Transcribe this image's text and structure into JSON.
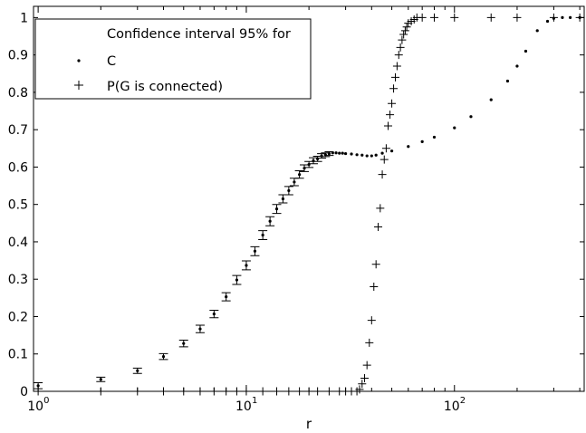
{
  "chart_data": {
    "type": "scatter",
    "title": "",
    "xlabel": "r",
    "ylabel": "",
    "xscale": "log",
    "xlim": [
      0.95,
      420
    ],
    "ylim": [
      0,
      1.03
    ],
    "grid": false,
    "legend": {
      "placement": "top-left",
      "title": "Confidence interval 95% for",
      "entries": [
        "C",
        "P(G is connected)"
      ]
    },
    "x_ticks": [
      {
        "base": "10",
        "exp": "0",
        "value": 1
      },
      {
        "base": "10",
        "exp": "1",
        "value": 10
      },
      {
        "base": "10",
        "exp": "2",
        "value": 100
      }
    ],
    "y_ticks": [
      "0",
      "0.1",
      "0.2",
      "0.3",
      "0.4",
      "0.5",
      "0.6",
      "0.7",
      "0.8",
      "0.9",
      "1"
    ],
    "series": [
      {
        "name": "C",
        "marker": "dot",
        "error_bars": true,
        "x": [
          1,
          2,
          3,
          4,
          5,
          6,
          7,
          8,
          9,
          10,
          11,
          12,
          13,
          14,
          15,
          16,
          17,
          18,
          19,
          20,
          21,
          22,
          23,
          24,
          25,
          26,
          27,
          28,
          29,
          30,
          32,
          34,
          36,
          38,
          40,
          42,
          45,
          50,
          60,
          70,
          80,
          100,
          120,
          150,
          180,
          200,
          220,
          250,
          280,
          300,
          330,
          360,
          400
        ],
        "y": [
          0.015,
          0.032,
          0.055,
          0.093,
          0.128,
          0.167,
          0.207,
          0.253,
          0.298,
          0.337,
          0.375,
          0.418,
          0.455,
          0.488,
          0.515,
          0.537,
          0.56,
          0.58,
          0.597,
          0.607,
          0.617,
          0.622,
          0.63,
          0.633,
          0.636,
          0.638,
          0.638,
          0.637,
          0.637,
          0.636,
          0.635,
          0.633,
          0.632,
          0.63,
          0.63,
          0.632,
          0.637,
          0.643,
          0.655,
          0.668,
          0.68,
          0.705,
          0.735,
          0.78,
          0.83,
          0.87,
          0.91,
          0.965,
          0.99,
          0.998,
          1.0,
          1.0,
          1.0
        ],
        "err": [
          0.008,
          0.006,
          0.007,
          0.008,
          0.009,
          0.01,
          0.01,
          0.011,
          0.012,
          0.012,
          0.012,
          0.012,
          0.012,
          0.012,
          0.011,
          0.011,
          0.01,
          0.01,
          0.009,
          0.008,
          0.008,
          0.007,
          0.006,
          0.005,
          0.005,
          0.004,
          0.004,
          0.004,
          0.004,
          0.004,
          0.004,
          0.004,
          0.004,
          0.004,
          0.004,
          0.004,
          0.004,
          0.004,
          0.004,
          0.004,
          0.004,
          0.004,
          0.004,
          0.004,
          0.004,
          0.004,
          0.004,
          0.004,
          0.004,
          0.004,
          0.004,
          0.004,
          0.004
        ]
      },
      {
        "name": "P(G is connected)",
        "marker": "plus",
        "x": [
          1,
          2,
          3,
          4,
          5,
          6,
          7,
          8,
          9,
          10,
          12,
          14,
          16,
          18,
          20,
          22,
          25,
          28,
          30,
          32,
          34,
          35,
          36,
          37,
          38,
          39,
          40,
          41,
          42,
          43,
          44,
          45,
          46,
          47,
          48,
          49,
          50,
          51,
          52,
          53,
          54,
          55,
          56,
          57,
          58,
          59,
          60,
          62,
          64,
          66,
          70,
          80,
          100,
          150,
          200,
          300,
          400
        ],
        "y": [
          0,
          0,
          0,
          0,
          0,
          0,
          0,
          0,
          0,
          0,
          0,
          0,
          0,
          0,
          0,
          0,
          0,
          0,
          0,
          0,
          0,
          0.005,
          0.02,
          0.035,
          0.07,
          0.13,
          0.19,
          0.28,
          0.34,
          0.44,
          0.49,
          0.58,
          0.62,
          0.65,
          0.71,
          0.74,
          0.77,
          0.81,
          0.84,
          0.87,
          0.9,
          0.92,
          0.94,
          0.955,
          0.965,
          0.975,
          0.985,
          0.99,
          0.995,
          1.0,
          1.0,
          1.0,
          1.0,
          1.0,
          1.0,
          1.0,
          1.0
        ]
      }
    ]
  }
}
